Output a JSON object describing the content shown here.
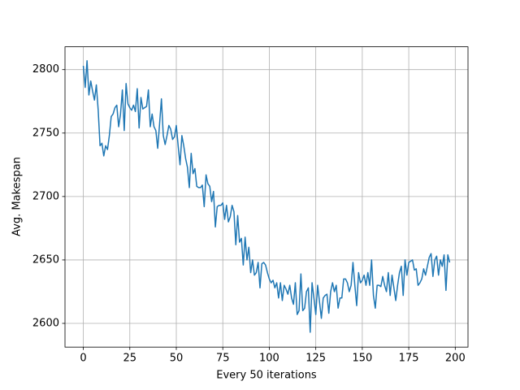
{
  "chart_data": {
    "type": "line",
    "xlabel": "Every 50 iterations",
    "ylabel": "Avg. Makespan",
    "x": [
      0,
      1,
      2,
      3,
      4,
      5,
      6,
      7,
      8,
      9,
      10,
      11,
      12,
      13,
      14,
      15,
      16,
      17,
      18,
      19,
      20,
      21,
      22,
      23,
      24,
      25,
      26,
      27,
      28,
      29,
      30,
      31,
      32,
      33,
      34,
      35,
      36,
      37,
      38,
      39,
      40,
      41,
      42,
      43,
      44,
      45,
      46,
      47,
      48,
      49,
      50,
      51,
      52,
      53,
      54,
      55,
      56,
      57,
      58,
      59,
      60,
      61,
      62,
      63,
      64,
      65,
      66,
      67,
      68,
      69,
      70,
      71,
      72,
      73,
      74,
      75,
      76,
      77,
      78,
      79,
      80,
      81,
      82,
      83,
      84,
      85,
      86,
      87,
      88,
      89,
      90,
      91,
      92,
      93,
      94,
      95,
      96,
      97,
      98,
      99,
      100,
      101,
      102,
      103,
      104,
      105,
      106,
      107,
      108,
      109,
      110,
      111,
      112,
      113,
      114,
      115,
      116,
      117,
      118,
      119,
      120,
      121,
      122,
      123,
      124,
      125,
      126,
      127,
      128,
      129,
      130,
      131,
      132,
      133,
      134,
      135,
      136,
      137,
      138,
      139,
      140,
      141,
      142,
      143,
      144,
      145,
      146,
      147,
      148,
      149,
      150,
      151,
      152,
      153,
      154,
      155,
      156,
      157,
      158,
      159,
      160,
      161,
      162,
      163,
      164,
      165,
      166,
      167,
      168,
      169,
      170,
      171,
      172,
      173,
      174,
      175,
      176,
      177,
      178,
      179,
      180,
      181,
      182,
      183,
      184,
      185,
      186,
      187,
      188,
      189,
      190,
      191,
      192,
      193,
      194,
      195,
      196,
      197
    ],
    "series": [
      {
        "color": "#1f77b4",
        "values": [
          2803,
          2786,
          2807,
          2780,
          2791,
          2783,
          2776,
          2788,
          2768,
          2740,
          2742,
          2732,
          2740,
          2737,
          2748,
          2763,
          2765,
          2770,
          2772,
          2755,
          2765,
          2784,
          2752,
          2789,
          2773,
          2770,
          2768,
          2772,
          2767,
          2785,
          2754,
          2778,
          2769,
          2770,
          2771,
          2784,
          2755,
          2765,
          2755,
          2752,
          2738,
          2757,
          2777,
          2748,
          2741,
          2748,
          2756,
          2753,
          2745,
          2747,
          2756,
          2740,
          2725,
          2748,
          2740,
          2730,
          2723,
          2707,
          2734,
          2718,
          2722,
          2708,
          2707,
          2707,
          2709,
          2692,
          2717,
          2710,
          2708,
          2696,
          2704,
          2676,
          2692,
          2693,
          2693,
          2695,
          2682,
          2693,
          2680,
          2684,
          2693,
          2688,
          2662,
          2685,
          2664,
          2667,
          2646,
          2668,
          2650,
          2660,
          2640,
          2650,
          2638,
          2640,
          2648,
          2628,
          2647,
          2648,
          2646,
          2640,
          2635,
          2632,
          2634,
          2628,
          2632,
          2620,
          2632,
          2618,
          2630,
          2627,
          2623,
          2630,
          2620,
          2615,
          2632,
          2607,
          2610,
          2639,
          2610,
          2612,
          2625,
          2628,
          2593,
          2632,
          2620,
          2607,
          2630,
          2617,
          2604,
          2620,
          2622,
          2623,
          2608,
          2625,
          2632,
          2625,
          2630,
          2612,
          2620,
          2620,
          2635,
          2635,
          2632,
          2625,
          2630,
          2648,
          2630,
          2614,
          2640,
          2632,
          2634,
          2638,
          2630,
          2640,
          2630,
          2650,
          2622,
          2612,
          2630,
          2630,
          2629,
          2637,
          2630,
          2625,
          2640,
          2622,
          2638,
          2628,
          2618,
          2630,
          2640,
          2645,
          2622,
          2650,
          2638,
          2648,
          2649,
          2650,
          2642,
          2643,
          2630,
          2632,
          2635,
          2643,
          2638,
          2645,
          2652,
          2655,
          2637,
          2650,
          2653,
          2638,
          2650,
          2645,
          2654,
          2626,
          2654,
          2648
        ]
      }
    ],
    "xlim": [
      -9.85,
      206.85
    ],
    "xticks": [
      0,
      25,
      50,
      75,
      100,
      125,
      150,
      175,
      200
    ],
    "ylim": [
      2581.3,
      2818
    ],
    "yticks": [
      2600,
      2650,
      2700,
      2750,
      2800
    ],
    "grid": true
  }
}
